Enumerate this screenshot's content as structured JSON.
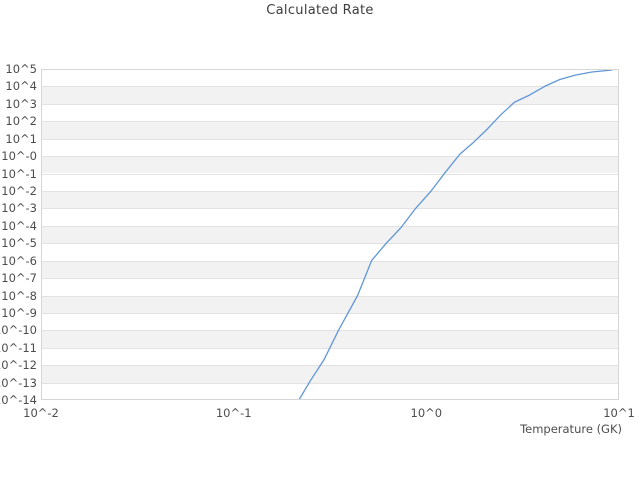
{
  "chart_data": {
    "type": "line",
    "title": "Calculated Rate",
    "xlabel": "Temperature (GK)",
    "ylabel": "",
    "x_scale": "log10",
    "y_scale": "log10",
    "x_log_range": [
      -2,
      1
    ],
    "y_log_range": [
      -14,
      5
    ],
    "xticks": [
      {
        "label": "10^-2",
        "log": -2
      },
      {
        "label": "10^-1",
        "log": -1
      },
      {
        "label": "10^0",
        "log": 0
      },
      {
        "label": "10^1",
        "log": 1
      }
    ],
    "yticks": [
      {
        "label": "10^5",
        "log": 5
      },
      {
        "label": "10^4",
        "log": 4
      },
      {
        "label": "10^3",
        "log": 3
      },
      {
        "label": "10^2",
        "log": 2
      },
      {
        "label": "10^1",
        "log": 1
      },
      {
        "label": "10^-0",
        "log": 0
      },
      {
        "label": "10^-1",
        "log": -1
      },
      {
        "label": "10^-2",
        "log": -2
      },
      {
        "label": "10^-3",
        "log": -3
      },
      {
        "label": "10^-4",
        "log": -4
      },
      {
        "label": "10^-5",
        "log": -5
      },
      {
        "label": "10^-6",
        "log": -6
      },
      {
        "label": "10^-7",
        "log": -7
      },
      {
        "label": "10^-8",
        "log": -8
      },
      {
        "label": "10^-9",
        "log": -9
      },
      {
        "label": "10^-10",
        "log": -10
      },
      {
        "label": "10^-11",
        "log": -11
      },
      {
        "label": "10^-12",
        "log": -12
      },
      {
        "label": "10^-13",
        "log": -13
      },
      {
        "label": "10^-14",
        "log": -14
      }
    ],
    "grid": "horizontal gridlines with alternating shaded bands, no vertical gridlines",
    "legend": "none",
    "series": [
      {
        "name": "Calculated Rate",
        "point_format": "[temperature_GK, log10_rate]",
        "points": [
          [
            0.218,
            -14.0
          ],
          [
            0.25,
            -12.9
          ],
          [
            0.294,
            -11.7
          ],
          [
            0.35,
            -10.0
          ],
          [
            0.44,
            -8.0
          ],
          [
            0.52,
            -6.0
          ],
          [
            0.62,
            -5.0
          ],
          [
            0.74,
            -4.1
          ],
          [
            0.88,
            -3.0
          ],
          [
            1.06,
            -2.0
          ],
          [
            1.26,
            -0.9
          ],
          [
            1.49,
            0.1
          ],
          [
            1.76,
            0.8
          ],
          [
            2.05,
            1.5
          ],
          [
            2.45,
            2.4
          ],
          [
            2.87,
            3.1
          ],
          [
            3.43,
            3.5
          ],
          [
            4.11,
            4.0
          ],
          [
            4.93,
            4.4
          ],
          [
            5.93,
            4.65
          ],
          [
            7.23,
            4.83
          ],
          [
            9.2,
            4.94
          ]
        ]
      }
    ],
    "colors": {
      "line": "#6197d8",
      "band": "#f2f2f2",
      "gridline": "#e2e2e2",
      "border": "#d6d6d6",
      "title_text": "#3d3d3d",
      "tick_text": "#4d4d4d"
    }
  }
}
